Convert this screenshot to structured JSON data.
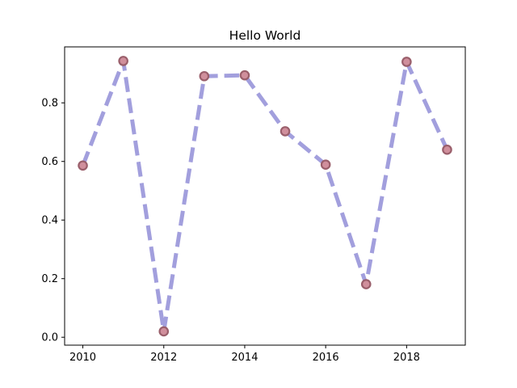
{
  "chart_data": {
    "type": "line",
    "title": "Hello World",
    "xlabel": "",
    "ylabel": "",
    "x": [
      2010,
      2011,
      2012,
      2013,
      2014,
      2015,
      2016,
      2017,
      2018,
      2019
    ],
    "series": [
      {
        "values": [
          0.586,
          0.943,
          0.02,
          0.891,
          0.894,
          0.703,
          0.589,
          0.181,
          0.94,
          0.64
        ]
      }
    ],
    "xlim": [
      2009.55,
      2019.45
    ],
    "ylim": [
      -0.027,
      0.991
    ],
    "xticks": [
      2010,
      2012,
      2014,
      2016,
      2018
    ],
    "xtick_labels": [
      "2010",
      "2012",
      "2014",
      "2016",
      "2018"
    ],
    "yticks": [
      0.0,
      0.2,
      0.4,
      0.6,
      0.8
    ],
    "ytick_labels": [
      "0.0",
      "0.2",
      "0.4",
      "0.6",
      "0.8"
    ],
    "grid": false,
    "line_style": "dashed",
    "colors": {
      "line": "#a29fdd",
      "marker_face": "#d08f9c",
      "marker_edge": "#9a5f6b"
    }
  }
}
